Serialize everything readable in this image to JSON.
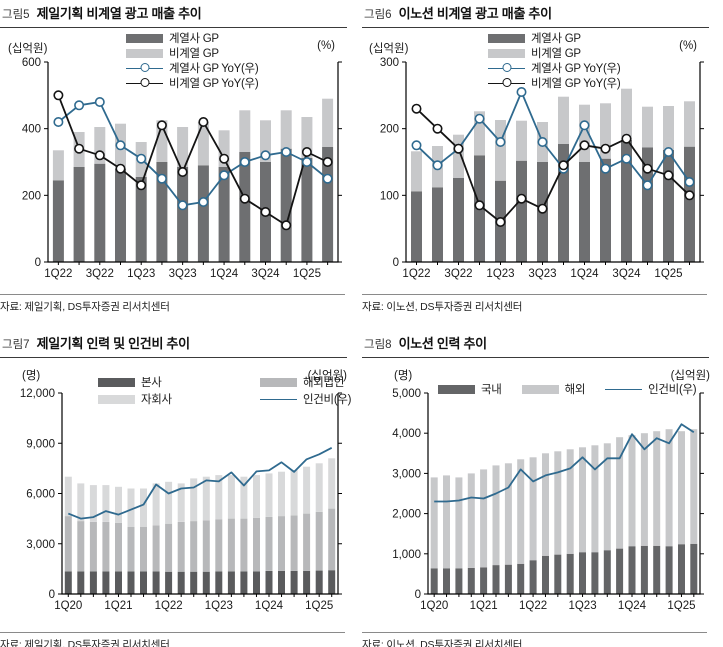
{
  "figures": [
    {
      "label": "그림5",
      "title": "제일기획 비계열 광고 매출 추이",
      "unit_left": "(십억원)",
      "unit_right": "(%)",
      "source": "자료: 제일기획, DS투자증권 리서치센터"
    },
    {
      "label": "그림6",
      "title": "이노션 비계열 광고 매출 추이",
      "unit_left": "(십억원)",
      "unit_right": "(%)",
      "source": "자료: 이노션, DS투자증권 리서치센터"
    },
    {
      "label": "그림7",
      "title": "제일기획 인력 및 인건비 추이",
      "unit_left": "(명)",
      "unit_right": "(십억원)",
      "source": "자료: 제일기획, DS투자증권 리서치센터"
    },
    {
      "label": "그림8",
      "title": "이노션 인력 추이",
      "unit_left": "(명)",
      "unit_right": "(십억원)",
      "source": "자료: 이노션, DS투자증권 리서치센터"
    }
  ],
  "chart_data": [
    {
      "type": "bar+line",
      "title": "제일기획 비계열 광고 매출 추이",
      "categories": [
        "1Q22",
        "2Q22",
        "3Q22",
        "4Q22",
        "1Q23",
        "2Q23",
        "3Q23",
        "4Q23",
        "1Q24",
        "2Q24",
        "3Q24",
        "4Q24",
        "1Q25",
        "2Q25"
      ],
      "bar_series": [
        {
          "name": "계열사 GP",
          "color": "#6e6f71",
          "values": [
            245,
            285,
            295,
            280,
            255,
            300,
            285,
            290,
            285,
            330,
            300,
            340,
            312,
            345
          ]
        },
        {
          "name": "비계열 GP",
          "color": "#c7c8ca",
          "values": [
            90,
            105,
            110,
            135,
            105,
            125,
            120,
            130,
            110,
            125,
            125,
            115,
            123,
            145
          ]
        }
      ],
      "line_series": [
        {
          "name": "계열사 GP YoY(우)",
          "color": "#2f6a8f",
          "marker": true,
          "axis": "right",
          "values": [
            22,
            27,
            28,
            15,
            11,
            5,
            -3,
            -2,
            6,
            10,
            12,
            13,
            10,
            5
          ]
        },
        {
          "name": "비계열 GP YoY(우)",
          "color": "#141414",
          "marker": true,
          "axis": "right",
          "values": [
            30,
            14,
            12,
            8,
            3,
            21,
            7,
            22,
            11,
            -1,
            -5,
            -9,
            13,
            10
          ]
        }
      ],
      "ylim_left": [
        0,
        600
      ],
      "yticks_left": [
        0,
        200,
        400,
        600
      ],
      "ylim_right": [
        -20,
        40
      ],
      "yticks_right": [
        -20,
        0,
        20,
        40
      ],
      "label_every": 2,
      "comma": false,
      "legend_position": "top-center-column",
      "grid": false
    },
    {
      "type": "bar+line",
      "title": "이노션 비계열 광고 매출 추이",
      "categories": [
        "1Q22",
        "2Q22",
        "3Q22",
        "4Q22",
        "1Q23",
        "2Q23",
        "3Q23",
        "4Q23",
        "1Q24",
        "2Q24",
        "3Q24",
        "4Q24",
        "1Q25",
        "2Q25"
      ],
      "bar_series": [
        {
          "name": "계열사 GP",
          "color": "#6e6f71",
          "values": [
            106,
            112,
            126,
            160,
            122,
            152,
            150,
            177,
            150,
            155,
            183,
            172,
            168,
            173
          ]
        },
        {
          "name": "비계열 GP",
          "color": "#c7c8ca",
          "values": [
            60,
            62,
            65,
            66,
            91,
            60,
            60,
            71,
            86,
            83,
            77,
            61,
            66,
            68
          ]
        }
      ],
      "line_series": [
        {
          "name": "계열사 GP YoY(우)",
          "color": "#2f6a8f",
          "marker": true,
          "axis": "right",
          "values": [
            15,
            9,
            14,
            23,
            16,
            31,
            16,
            8,
            21,
            8,
            11,
            3,
            13,
            4
          ]
        },
        {
          "name": "비계열 GP YoY(우)",
          "color": "#141414",
          "marker": true,
          "axis": "right",
          "values": [
            26,
            20,
            14,
            -3,
            -8,
            -1,
            -4,
            9,
            15,
            14,
            17,
            8,
            6,
            0
          ]
        }
      ],
      "ylim_left": [
        0,
        300
      ],
      "yticks_left": [
        0,
        100,
        200,
        300
      ],
      "ylim_right": [
        -20,
        40
      ],
      "yticks_right": [
        -20,
        0,
        20,
        40
      ],
      "label_every": 2,
      "comma": false,
      "legend_position": "top-center-column",
      "grid": false
    },
    {
      "type": "bar+line",
      "title": "제일기획 인력 및 인건비 추이",
      "categories": [
        "1Q20",
        "2Q20",
        "3Q20",
        "4Q20",
        "1Q21",
        "2Q21",
        "3Q21",
        "4Q21",
        "1Q22",
        "2Q22",
        "3Q22",
        "4Q22",
        "1Q23",
        "2Q23",
        "3Q23",
        "4Q23",
        "1Q24",
        "2Q24",
        "3Q24",
        "4Q24",
        "1Q25",
        "2Q25"
      ],
      "bar_series": [
        {
          "name": "본사",
          "color": "#5a5b5d",
          "values": [
            1350,
            1350,
            1350,
            1350,
            1350,
            1350,
            1350,
            1350,
            1330,
            1330,
            1330,
            1330,
            1350,
            1350,
            1350,
            1350,
            1380,
            1380,
            1380,
            1380,
            1400,
            1420
          ]
        },
        {
          "name": "해외법인",
          "color": "#b7b8ba",
          "values": [
            3300,
            3000,
            2950,
            2950,
            2900,
            2650,
            2650,
            2750,
            2870,
            2970,
            3020,
            3070,
            3100,
            3150,
            3150,
            3200,
            3220,
            3270,
            3320,
            3420,
            3500,
            3680
          ]
        },
        {
          "name": "자회사",
          "color": "#d8d9da",
          "values": [
            2350,
            2250,
            2200,
            2200,
            2150,
            2300,
            2300,
            2500,
            2500,
            2300,
            2550,
            2600,
            2650,
            2600,
            2500,
            2550,
            2600,
            2650,
            2700,
            2800,
            2900,
            3000
          ]
        }
      ],
      "line_series": [
        {
          "name": "인건비(우)",
          "color": "#2f6a8f",
          "marker": false,
          "axis": "right",
          "values": [
            160,
            150,
            153,
            165,
            158,
            168,
            178,
            218,
            200,
            210,
            212,
            226,
            224,
            242,
            216,
            244,
            246,
            262,
            243,
            268,
            278,
            291
          ]
        }
      ],
      "ylim_left": [
        0,
        12000
      ],
      "yticks_left": [
        0,
        3000,
        6000,
        9000,
        12000
      ],
      "ylim_right": [
        0,
        400
      ],
      "yticks_right": [
        0,
        100,
        200,
        300,
        400
      ],
      "label_every": 4,
      "comma": true,
      "legend_position": "top-grid-2col",
      "grid": false
    },
    {
      "type": "bar+line",
      "title": "이노션 인력 추이",
      "categories": [
        "1Q20",
        "2Q20",
        "3Q20",
        "4Q20",
        "1Q21",
        "2Q21",
        "3Q21",
        "4Q21",
        "1Q22",
        "2Q22",
        "3Q22",
        "4Q22",
        "1Q23",
        "2Q23",
        "3Q23",
        "4Q23",
        "1Q24",
        "2Q24",
        "3Q24",
        "4Q24",
        "1Q25",
        "2Q25"
      ],
      "bar_series": [
        {
          "name": "국내",
          "color": "#646567",
          "values": [
            640,
            640,
            640,
            650,
            660,
            720,
            730,
            750,
            840,
            950,
            980,
            1000,
            1040,
            1040,
            1090,
            1130,
            1190,
            1200,
            1200,
            1190,
            1240,
            1250
          ]
        },
        {
          "name": "해외",
          "color": "#c7c8ca",
          "values": [
            2260,
            2310,
            2260,
            2350,
            2440,
            2480,
            2520,
            2600,
            2560,
            2550,
            2570,
            2600,
            2610,
            2660,
            2660,
            2770,
            2760,
            2800,
            2850,
            2910,
            2810,
            2850
          ]
        }
      ],
      "line_series": [
        {
          "name": "인건비(우)",
          "color": "#2f6a8f",
          "marker": false,
          "axis": "right",
          "values": [
            92,
            92,
            93,
            96,
            95,
            100,
            106,
            124,
            112,
            118,
            121,
            125,
            136,
            124,
            135,
            135,
            159,
            144,
            155,
            150,
            169,
            161
          ]
        }
      ],
      "ylim_left": [
        0,
        5000
      ],
      "yticks_left": [
        0,
        1000,
        2000,
        3000,
        4000,
        5000
      ],
      "ylim_right": [
        0,
        200
      ],
      "yticks_right": [
        0,
        40,
        80,
        120,
        160,
        200
      ],
      "label_every": 4,
      "comma": true,
      "legend_position": "top-row",
      "grid": false
    }
  ]
}
